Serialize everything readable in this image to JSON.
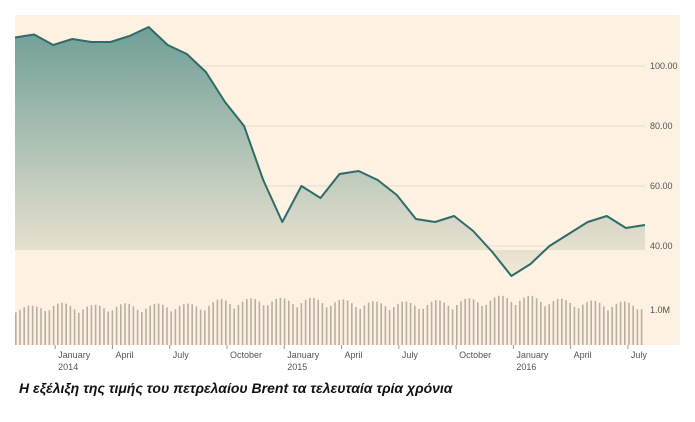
{
  "caption": "Η εξέλιξη της τιμής του πετρελαίου Brent τα τελευταία τρία χρόνια",
  "chart_data": {
    "type": "area",
    "title": "",
    "xlabel": "",
    "ylabel": "",
    "x": [
      "2013-11",
      "2013-12",
      "2014-01",
      "2014-02",
      "2014-03",
      "2014-04",
      "2014-05",
      "2014-06",
      "2014-07",
      "2014-08",
      "2014-09",
      "2014-10",
      "2014-11",
      "2014-12",
      "2015-01",
      "2015-02",
      "2015-03",
      "2015-04",
      "2015-05",
      "2015-06",
      "2015-07",
      "2015-08",
      "2015-09",
      "2015-10",
      "2015-11",
      "2015-12",
      "2016-01",
      "2016-02",
      "2016-03",
      "2016-04",
      "2016-05",
      "2016-06",
      "2016-07",
      "2016-08"
    ],
    "series": [
      {
        "values": [
          109.5,
          110.5,
          107,
          109,
          108,
          108,
          110,
          113,
          107,
          104,
          98,
          88,
          80,
          62,
          48,
          60,
          56,
          64,
          65,
          62,
          57,
          49,
          48,
          50,
          45,
          38,
          30,
          34,
          40,
          44,
          48,
          50,
          46,
          47
        ]
      }
    ],
    "ylim": [
      0,
      120
    ],
    "y_ticks": [
      "100.00",
      "80.00",
      "60.00",
      "40.00"
    ],
    "x_tick_labels": [
      {
        "month": "January",
        "year": "2014"
      },
      {
        "month": "April",
        "year": ""
      },
      {
        "month": "July",
        "year": ""
      },
      {
        "month": "October",
        "year": ""
      },
      {
        "month": "January",
        "year": "2015"
      },
      {
        "month": "April",
        "year": ""
      },
      {
        "month": "July",
        "year": ""
      },
      {
        "month": "October",
        "year": ""
      },
      {
        "month": "January",
        "year": "2016"
      },
      {
        "month": "April",
        "year": ""
      },
      {
        "month": "July",
        "year": ""
      }
    ],
    "volume": {
      "tick_label": "1.0M",
      "values": [
        0.72,
        0.68,
        0.75,
        0.72,
        0.7,
        0.72,
        0.73,
        0.71,
        0.74,
        0.72,
        0.74,
        0.82,
        0.8,
        0.84,
        0.82,
        0.83,
        0.82,
        0.8,
        0.78,
        0.76,
        0.77,
        0.75,
        0.78,
        0.79,
        0.82,
        0.84,
        0.88,
        0.86,
        0.84,
        0.8,
        0.78,
        0.77,
        0.76,
        0.75
      ]
    },
    "grid": true,
    "colors": {
      "background": "#fdf1e2",
      "line": "#2f6b69",
      "fill_top": "#6f9f96",
      "fill_bottom": "#f4e8d6",
      "volume": "#b9aea2",
      "grid": "#e6dccd",
      "axis_text": "#555555"
    }
  }
}
